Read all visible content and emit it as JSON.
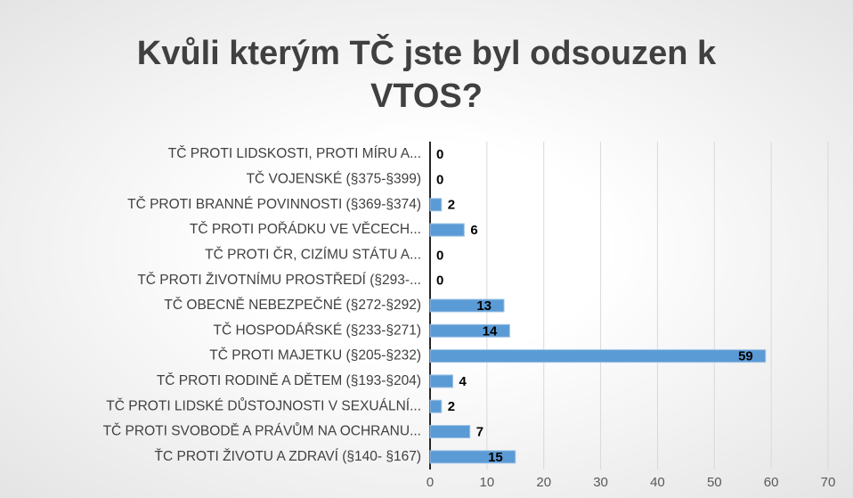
{
  "chart_data": {
    "type": "barh",
    "title": "Kvůli kterým TČ jste byl odsouzen k VTOS?",
    "categories": [
      "TČ PROTI LIDSKOSTI, PROTI MÍRU A...",
      "TČ VOJENSKÉ (§375-§399)",
      "TČ PROTI BRANNÉ POVINNOSTI (§369-§374)",
      "TČ PROTI POŘÁDKU VE VĚCECH...",
      "TČ PROTI ČR, CIZÍMU STÁTU A...",
      "TČ PROTI ŽIVOTNÍMU PROSTŘEDÍ (§293-...",
      "TČ OBECNĚ NEBEZPEČNÉ (§272-§292)",
      "TČ HOSPODÁŘSKÉ (§233-§271)",
      "TČ PROTI MAJETKU (§205-§232)",
      "TČ PROTI RODINĚ A DĚTEM (§193-§204)",
      "TČ PROTI LIDSKÉ DŮSTOJNOSTI V SEXUÁLNÍ...",
      "TČ PROTI SVOBODĚ A PRÁVŮM NA OCHRANU...",
      "ŤC PROTI ŽIVOTU A ZDRAVÍ (§140- §167)"
    ],
    "values": [
      0,
      0,
      2,
      6,
      0,
      0,
      13,
      14,
      59,
      4,
      2,
      7,
      15
    ],
    "color": "#5b9bd5",
    "xlim": [
      0,
      70
    ],
    "xticks": [
      0,
      10,
      20,
      30,
      40,
      50,
      60,
      70
    ],
    "grid": true
  }
}
